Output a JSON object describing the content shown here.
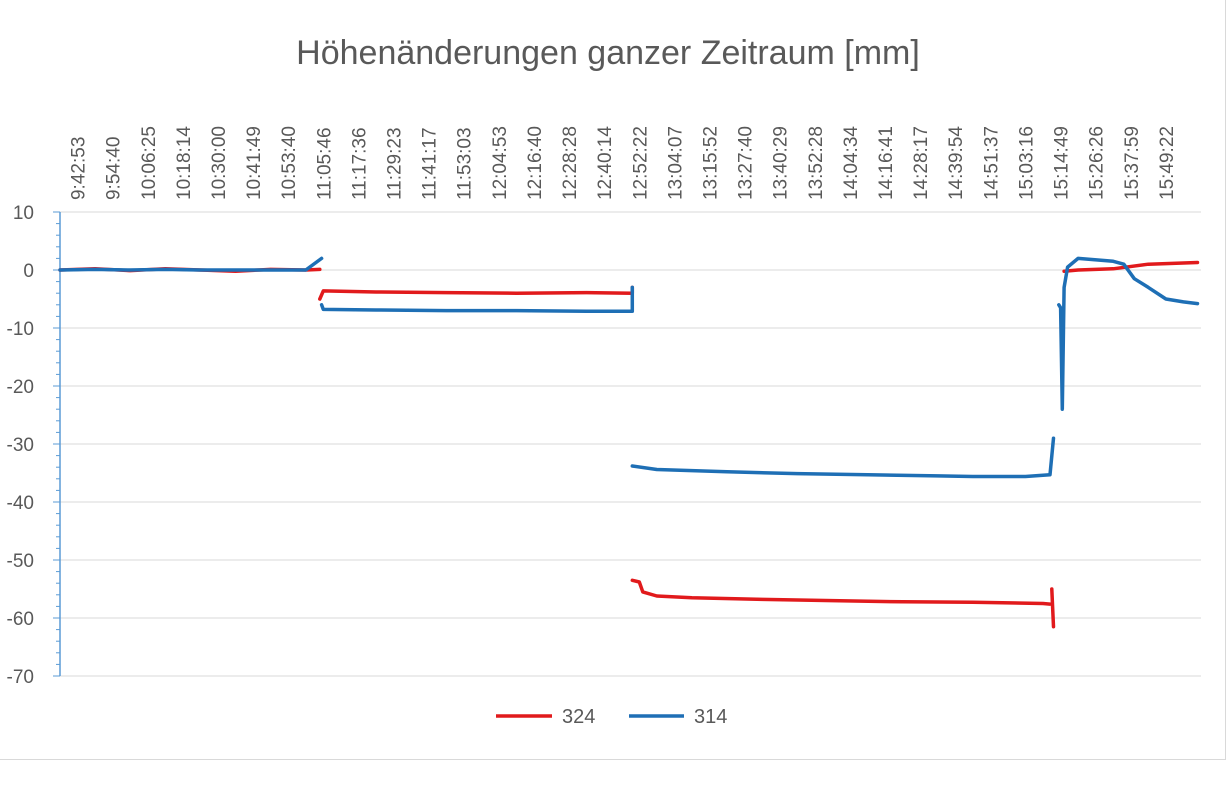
{
  "chart_data": {
    "type": "line",
    "title": "Höhenänderungen ganzer Zeitraum [mm]",
    "xlabel": "",
    "ylabel": "",
    "ylim": [
      -70,
      10
    ],
    "yticks": [
      10,
      0,
      -10,
      -20,
      -30,
      -40,
      -50,
      -60,
      -70
    ],
    "ytick_labels": [
      "10",
      "0",
      "-10",
      "-20",
      "-30",
      "-40",
      "-50",
      "-60",
      "-70"
    ],
    "x_tick_labels": [
      "9:42:53",
      "9:54:40",
      "10:06:25",
      "10:18:14",
      "10:30:00",
      "10:41:49",
      "10:53:40",
      "11:05:46",
      "11:17:36",
      "11:29:23",
      "11:41:17",
      "11:53:03",
      "12:04:53",
      "12:16:40",
      "12:28:28",
      "12:40:14",
      "12:52:22",
      "13:04:07",
      "13:15:52",
      "13:27:40",
      "13:40:29",
      "13:52:28",
      "14:04:34",
      "14:16:41",
      "14:28:17",
      "14:39:54",
      "14:51:37",
      "15:03:16",
      "15:14:49",
      "15:26:26",
      "15:37:59",
      "15:49:22"
    ],
    "xlim": [
      0,
      32.5
    ],
    "grid": true,
    "legend_position": "bottom",
    "series": [
      {
        "name": "324",
        "color": "#e11a1c",
        "segments": [
          [
            [
              0,
              0
            ],
            [
              1,
              0.2
            ],
            [
              2,
              -0.1
            ],
            [
              3,
              0.2
            ],
            [
              4,
              0
            ],
            [
              5,
              -0.2
            ],
            [
              6,
              0.1
            ],
            [
              7,
              0
            ],
            [
              7.4,
              0.1
            ]
          ],
          [
            [
              7.4,
              -5
            ],
            [
              7.5,
              -3.6
            ],
            [
              9,
              -3.8
            ],
            [
              11,
              -3.9
            ],
            [
              13,
              -4
            ],
            [
              15,
              -3.9
            ],
            [
              16.3,
              -4
            ],
            [
              16.3,
              -3
            ]
          ],
          [
            [
              16.3,
              -53.5
            ],
            [
              16.5,
              -53.8
            ],
            [
              16.6,
              -55.5
            ],
            [
              17,
              -56.2
            ],
            [
              18,
              -56.5
            ],
            [
              20,
              -56.8
            ],
            [
              22,
              -57
            ],
            [
              24,
              -57.2
            ],
            [
              26,
              -57.3
            ],
            [
              28,
              -57.5
            ],
            [
              28.2,
              -57.6
            ]
          ],
          [
            [
              28.25,
              -55
            ],
            [
              28.3,
              -61.5
            ]
          ],
          [
            [
              28.6,
              -0.2
            ],
            [
              29,
              0
            ],
            [
              30,
              0.2
            ],
            [
              31,
              1
            ],
            [
              32,
              1.2
            ],
            [
              32.4,
              1.3
            ]
          ]
        ]
      },
      {
        "name": "314",
        "color": "#1e6fb5",
        "segments": [
          [
            [
              0,
              0
            ],
            [
              1,
              0.1
            ],
            [
              2,
              0
            ],
            [
              3,
              0.1
            ],
            [
              4,
              0
            ],
            [
              5,
              0
            ],
            [
              6,
              0
            ],
            [
              7,
              0
            ],
            [
              7.45,
              2
            ]
          ],
          [
            [
              7.45,
              -6
            ],
            [
              7.5,
              -6.8
            ],
            [
              9,
              -6.9
            ],
            [
              11,
              -7
            ],
            [
              13,
              -7
            ],
            [
              15,
              -7.1
            ],
            [
              16.3,
              -7.1
            ],
            [
              16.3,
              -3
            ]
          ],
          [
            [
              16.3,
              -33.8
            ],
            [
              17,
              -34.4
            ],
            [
              19,
              -34.8
            ],
            [
              21,
              -35.1
            ],
            [
              23,
              -35.3
            ],
            [
              25,
              -35.5
            ],
            [
              26,
              -35.6
            ],
            [
              27.5,
              -35.6
            ],
            [
              28.2,
              -35.3
            ],
            [
              28.3,
              -29
            ]
          ],
          [
            [
              28.45,
              -6
            ],
            [
              28.5,
              -6.5
            ],
            [
              28.55,
              -24
            ],
            [
              28.6,
              -3
            ],
            [
              28.7,
              0.5
            ],
            [
              29,
              2
            ],
            [
              30,
              1.5
            ],
            [
              30.3,
              1
            ],
            [
              30.6,
              -1.5
            ],
            [
              31,
              -3
            ],
            [
              31.5,
              -5
            ],
            [
              32,
              -5.5
            ],
            [
              32.4,
              -5.8
            ]
          ]
        ]
      }
    ]
  }
}
